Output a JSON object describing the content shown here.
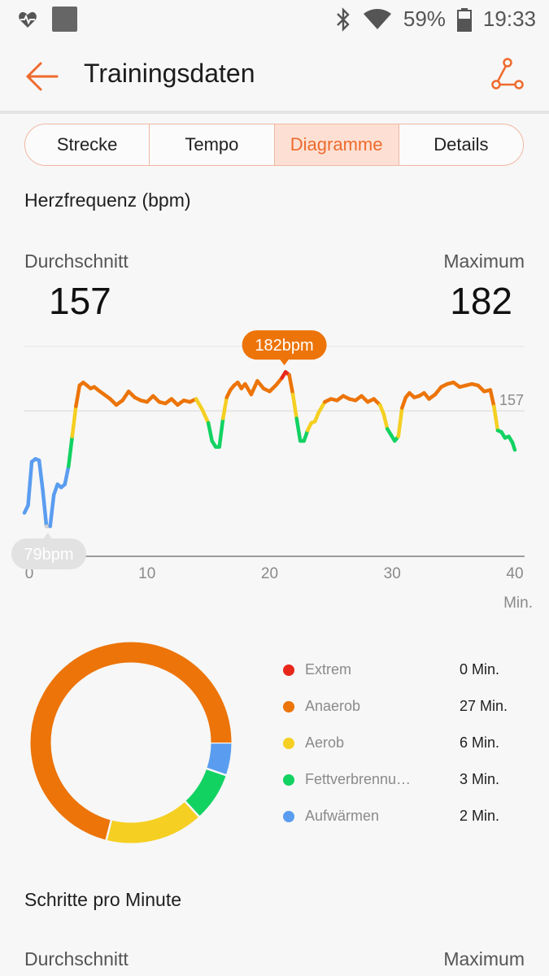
{
  "status_bar": {
    "battery_percent": "59%",
    "time": "19:33"
  },
  "header": {
    "title": "Trainingsdaten",
    "back_icon": "arrow-left-icon",
    "share_icon": "route-share-icon",
    "accent_color": "#ee6a2d"
  },
  "tabs": [
    {
      "label": "Strecke"
    },
    {
      "label": "Tempo"
    },
    {
      "label": "Diagramme",
      "active": true
    },
    {
      "label": "Details"
    }
  ],
  "heart_rate": {
    "title": "Herzfrequenz (bpm)",
    "avg_label": "Durchschnitt",
    "avg_value": "157",
    "max_label": "Maximum",
    "max_value": "182"
  },
  "steps": {
    "title": "Schritte pro Minute",
    "avg_label": "Durchschnitt",
    "max_label": "Maximum"
  },
  "chart_data": [
    {
      "type": "line",
      "x_ticks": [
        "0",
        "10",
        "20",
        "30",
        "40"
      ],
      "x_unit": "Min.",
      "xlim": [
        0,
        40
      ],
      "ylim": [
        60,
        200
      ],
      "avg_line_value": 157,
      "avg_line_label": "157",
      "max_marker": {
        "x": 21.2,
        "y": 182,
        "label": "182bpm"
      },
      "min_marker": {
        "x": 1.9,
        "y": 79,
        "label": "79bpm"
      },
      "zone_colors": {
        "Extrem": "#e8271b",
        "Anaerob": "#ec7408",
        "Aerob": "#f5cf22",
        "Fettverbrennung": "#12d262",
        "Aufwärmen": "#5a9df0",
        "Below": "#cfcfcf"
      },
      "x": [
        0.0,
        0.3,
        0.6,
        0.9,
        1.2,
        1.5,
        1.8,
        2.1,
        2.4,
        2.7,
        3.0,
        3.3,
        3.6,
        3.9,
        4.2,
        4.5,
        4.8,
        5.1,
        5.4,
        5.7,
        6.0,
        6.5,
        7.0,
        7.5,
        8.0,
        8.5,
        9.0,
        9.5,
        10.0,
        10.5,
        11.0,
        11.5,
        12.0,
        12.5,
        13.0,
        13.5,
        14.0,
        14.5,
        15.0,
        15.3,
        15.6,
        15.9,
        16.2,
        16.5,
        16.8,
        17.1,
        17.4,
        17.7,
        18.0,
        18.5,
        19.0,
        19.5,
        20.0,
        20.5,
        21.0,
        21.3,
        21.6,
        21.9,
        22.2,
        22.5,
        22.8,
        23.1,
        23.4,
        23.7,
        24.0,
        24.5,
        25.0,
        25.5,
        26.0,
        26.5,
        27.0,
        27.5,
        28.0,
        28.5,
        29.0,
        29.3,
        29.6,
        29.9,
        30.2,
        30.5,
        30.8,
        31.1,
        31.4,
        31.8,
        32.2,
        32.6,
        33.0,
        33.5,
        34.0,
        34.5,
        35.0,
        35.5,
        36.0,
        36.5,
        37.0,
        37.5,
        38.0,
        38.3,
        38.6,
        38.9,
        39.2,
        39.5,
        39.8,
        40.0
      ],
      "y": [
        89,
        94,
        123,
        125,
        124,
        104,
        80,
        80,
        101,
        108,
        106,
        108,
        120,
        140,
        160,
        174,
        176,
        174,
        172,
        173,
        171,
        168,
        165,
        161,
        164,
        170,
        166,
        164,
        163,
        167,
        163,
        162,
        165,
        161,
        164,
        163,
        165,
        158,
        149,
        137,
        133,
        133,
        152,
        166,
        171,
        174,
        176,
        172,
        175,
        168,
        177,
        172,
        170,
        174,
        179,
        183,
        181,
        168,
        152,
        137,
        137,
        144,
        149,
        150,
        156,
        163,
        165,
        164,
        167,
        165,
        164,
        167,
        163,
        165,
        161,
        155,
        145,
        141,
        137,
        140,
        159,
        166,
        169,
        166,
        167,
        169,
        165,
        168,
        173,
        175,
        176,
        173,
        174,
        175,
        174,
        170,
        171,
        160,
        144,
        143,
        139,
        140,
        136,
        131
      ]
    },
    {
      "type": "pie",
      "style": "donut",
      "labels": [
        "Extrem",
        "Anaerob",
        "Aerob",
        "Fettverbrennung",
        "Aufwärmen"
      ],
      "values": [
        0,
        27,
        6,
        3,
        2
      ],
      "colors": [
        "#e8271b",
        "#ec7408",
        "#f5cf22",
        "#12d262",
        "#5a9df0"
      ]
    }
  ],
  "legend": [
    {
      "label": "Extrem",
      "value": "0 Min.",
      "color": "#e8271b"
    },
    {
      "label": "Anaerob",
      "value": "27 Min.",
      "color": "#ec7408"
    },
    {
      "label": "Aerob",
      "value": "6 Min.",
      "color": "#f5cf22"
    },
    {
      "label": "Fettverbrennu…",
      "value": "3 Min.",
      "color": "#12d262"
    },
    {
      "label": "Aufwärmen",
      "value": "2 Min.",
      "color": "#5a9df0"
    }
  ]
}
